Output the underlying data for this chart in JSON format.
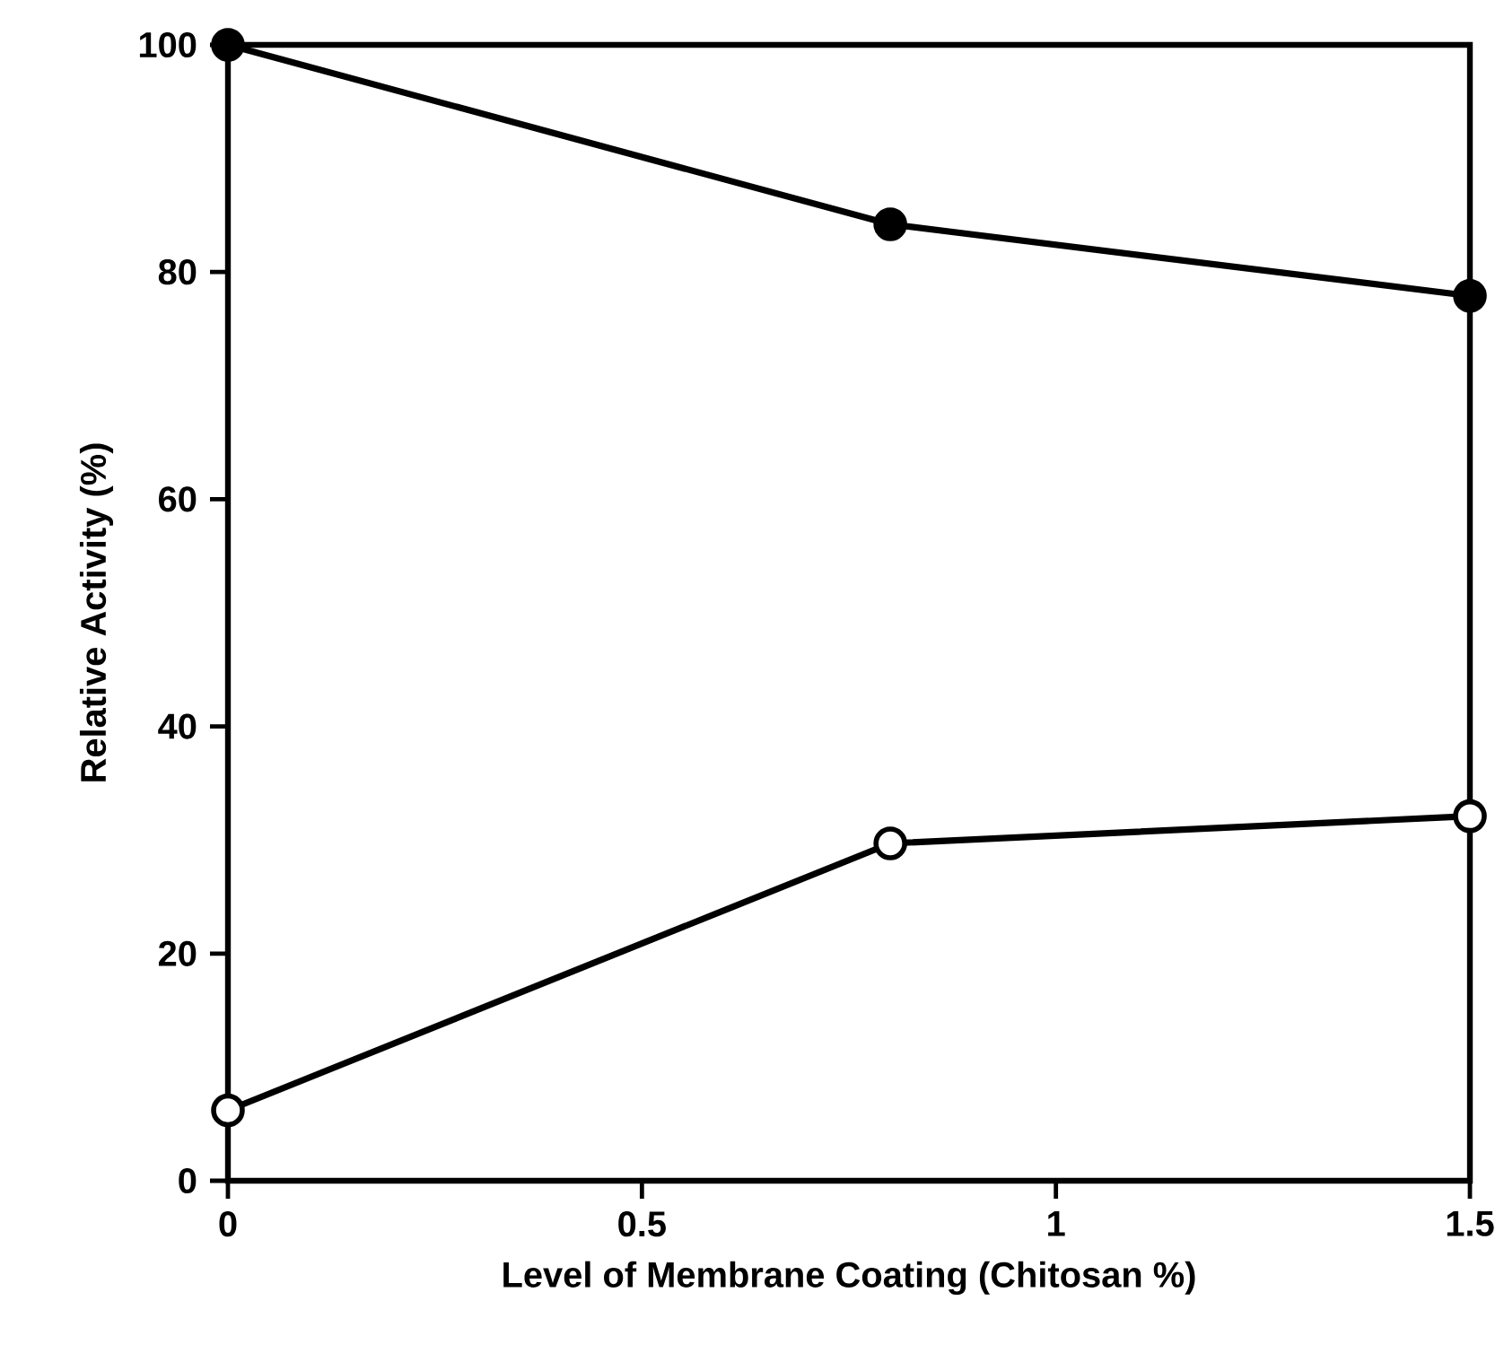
{
  "chart_data": {
    "type": "line",
    "xlabel": "Level of Membrane Coating (Chitosan %)",
    "ylabel": "Relative Activity (%)",
    "x": [
      0,
      0.8,
      1.5
    ],
    "series": [
      {
        "color": "#000000",
        "values": [
          100,
          84.2,
          77.9
        ]
      },
      {
        "color": "#000000",
        "values": [
          6.2,
          29.7,
          32.1
        ]
      }
    ],
    "xlim": [
      0,
      1.5
    ],
    "xticks": [
      0,
      0.5,
      1,
      1.5
    ],
    "ylim": [
      0,
      100
    ],
    "yticks": [
      0,
      20,
      40,
      60,
      80,
      100
    ],
    "marker": "circle",
    "line_style": "solid",
    "grid": false
  }
}
